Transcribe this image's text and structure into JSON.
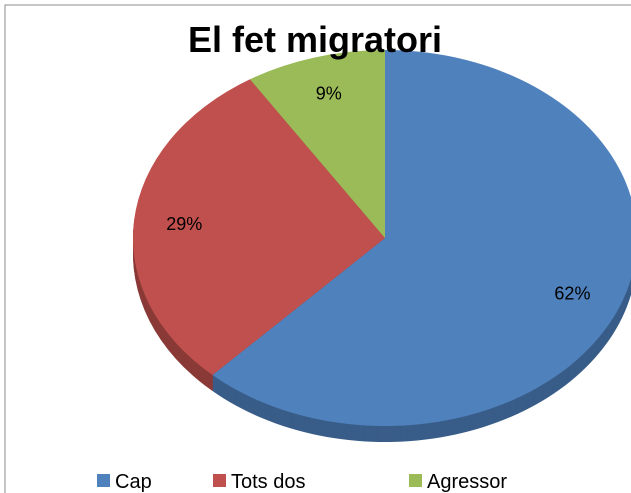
{
  "chart_data": {
    "type": "pie",
    "title": "El fet migratori",
    "categories": [
      "Cap",
      "Tots dos",
      "Agressor"
    ],
    "values": [
      62,
      29,
      9
    ],
    "value_labels": [
      "62%",
      "29%",
      "9%"
    ],
    "colors": [
      "#4f81bd",
      "#c0504d",
      "#9bbb59"
    ],
    "legend": "bottom"
  }
}
